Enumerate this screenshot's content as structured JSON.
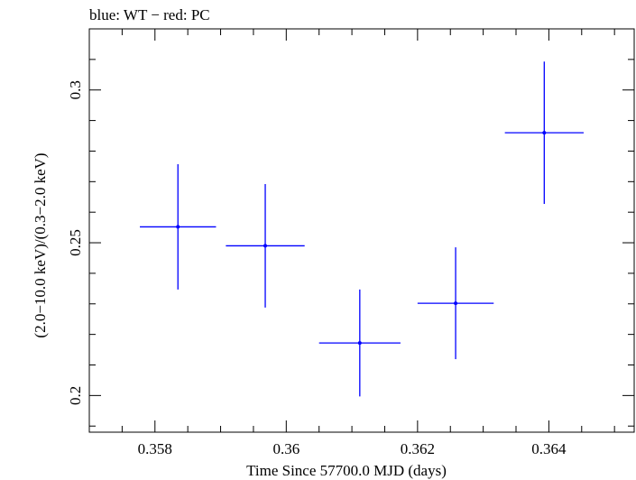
{
  "chart_data": {
    "type": "scatter",
    "title": "blue: WT − red: PC",
    "xlabel": "Time Since 57700.0 MJD (days)",
    "ylabel": "(2.0−10.0 keV)/(0.3−2.0 keV)",
    "xlim": [
      0.357,
      0.3653
    ],
    "ylim": [
      0.188,
      0.32
    ],
    "x_ticks": [
      {
        "value": 0.358,
        "label": "0.358"
      },
      {
        "value": 0.36,
        "label": "0.36"
      },
      {
        "value": 0.362,
        "label": "0.362"
      },
      {
        "value": 0.364,
        "label": "0.364"
      }
    ],
    "x_minor_step": 0.0005,
    "y_ticks": [
      {
        "value": 0.2,
        "label": "0.2"
      },
      {
        "value": 0.25,
        "label": "0.25"
      },
      {
        "value": 0.3,
        "label": "0.3"
      }
    ],
    "y_minor_step": 0.01,
    "grid": false,
    "series": [
      {
        "color": "#0000ff",
        "points": [
          {
            "x": 0.35835,
            "y": 0.2552,
            "xerr": 0.00058,
            "yerr": 0.0205
          },
          {
            "x": 0.35968,
            "y": 0.249,
            "xerr": 0.0006,
            "yerr": 0.0202
          },
          {
            "x": 0.36112,
            "y": 0.2172,
            "xerr": 0.00062,
            "yerr": 0.0175
          },
          {
            "x": 0.36258,
            "y": 0.2302,
            "xerr": 0.00058,
            "yerr": 0.0183
          },
          {
            "x": 0.36393,
            "y": 0.286,
            "xerr": 0.0006,
            "yerr": 0.0233
          }
        ]
      }
    ]
  }
}
